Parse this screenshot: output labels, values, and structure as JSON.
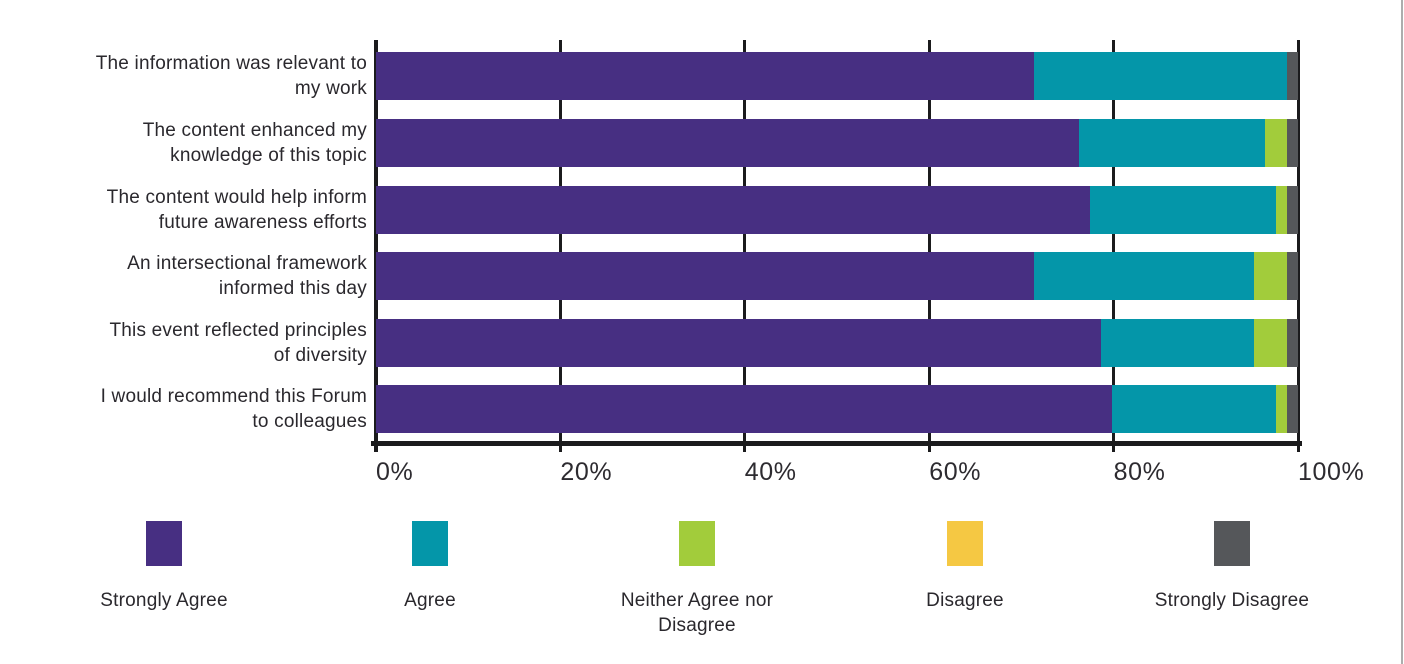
{
  "chart_data": {
    "type": "bar",
    "orientation": "horizontal",
    "stacked": true,
    "value_unit": "percent",
    "grid": true,
    "axis_color": "#1B1B1D",
    "background_color": "#FFFFFF",
    "categories": [
      [
        "The information was relevant to",
        "my work"
      ],
      [
        "The content enhanced my",
        "knowledge of this topic"
      ],
      [
        "The content would help inform",
        "future awareness efforts"
      ],
      [
        "An intersectional framework",
        "informed this day"
      ],
      [
        "This event reflected principles",
        "of diversity"
      ],
      [
        "I would recommend this Forum",
        "to colleagues"
      ]
    ],
    "series": [
      {
        "name": "Strongly Agree",
        "color": "#472F82",
        "values": [
          71.4,
          76.2,
          77.4,
          71.4,
          78.6,
          79.8
        ]
      },
      {
        "name": "Agree",
        "color": "#0496A9",
        "values": [
          27.4,
          20.2,
          20.2,
          23.8,
          16.6,
          17.8
        ]
      },
      {
        "name": "Neither Agree nor Disagree",
        "color": "#A2CC3B",
        "values": [
          0,
          2.4,
          1.2,
          3.6,
          3.6,
          1.2
        ]
      },
      {
        "name": "Disagree",
        "color": "#F5C843",
        "values": [
          0,
          0,
          0,
          0,
          0,
          0
        ]
      },
      {
        "name": "Strongly Disagree",
        "color": "#55575A",
        "values": [
          1.2,
          1.2,
          1.2,
          1.2,
          1.2,
          1.2
        ]
      }
    ],
    "x_axis": {
      "min": 0,
      "max": 100,
      "tick_labels": [
        "0%",
        "20%",
        "40%",
        "60%",
        "80%",
        "100%"
      ]
    },
    "legend_position": "bottom"
  }
}
